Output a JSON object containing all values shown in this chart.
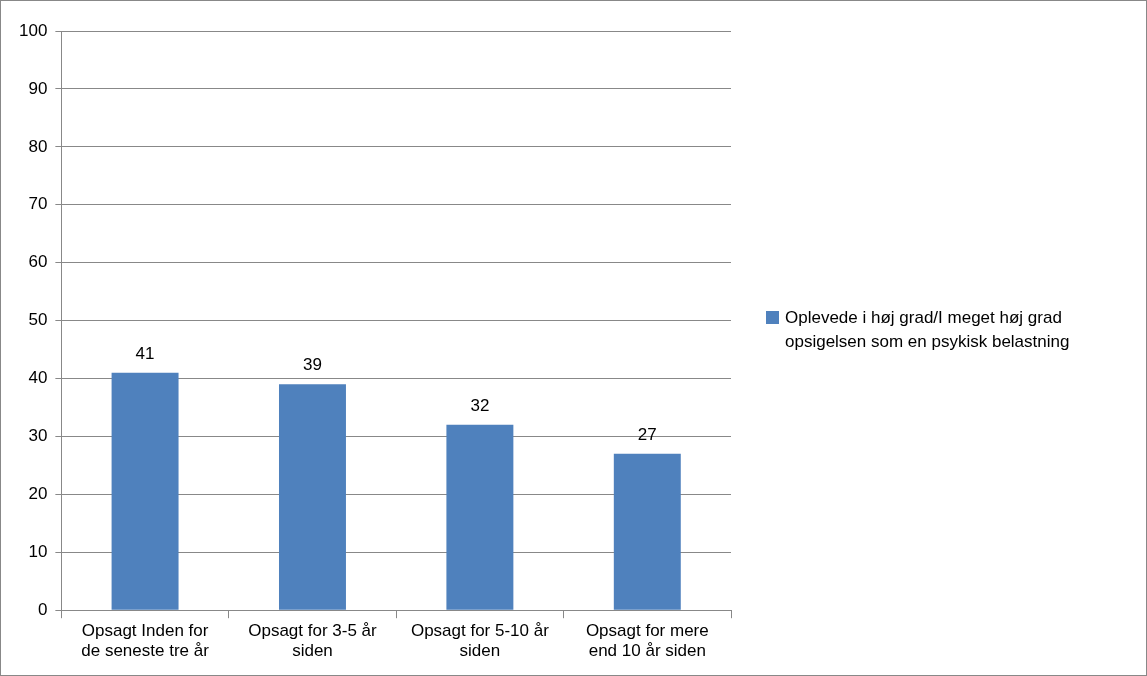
{
  "chart_data": {
    "type": "bar",
    "categories": [
      "Opsagt Inden for de seneste tre år",
      "Opsagt for 3-5 år siden",
      "Opsagt for 5-10 år siden",
      "Opsagt for mere end 10 år siden"
    ],
    "series": [
      {
        "name": "Oplevede i høj grad/I meget høj grad opsigelsen som en psykisk belastning",
        "color": "#4f81bd",
        "values": [
          41,
          39,
          32,
          27
        ]
      }
    ],
    "ylim": [
      0,
      100
    ],
    "yticks": [
      0,
      10,
      20,
      30,
      40,
      50,
      60,
      70,
      80,
      90,
      100
    ],
    "grid": "y",
    "legend": "right",
    "data_labels": true
  }
}
